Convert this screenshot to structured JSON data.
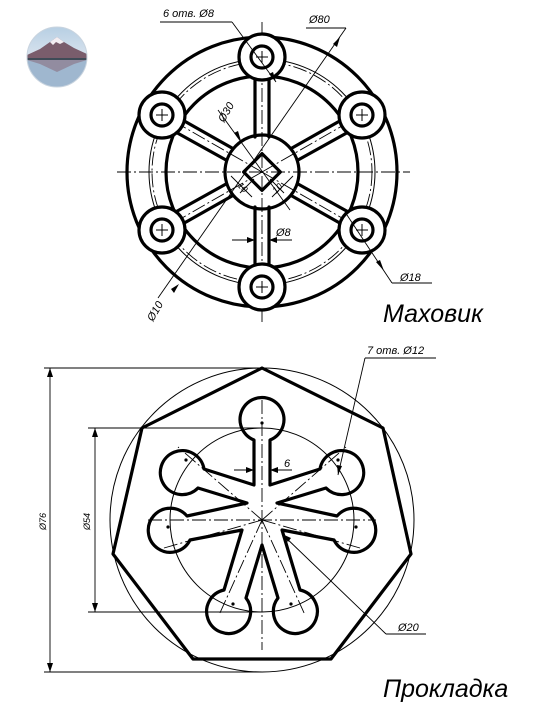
{
  "flywheel": {
    "title": "Маховик",
    "dims": {
      "holes_note": "6 отв. Ø8",
      "outer_diameter": "Ø80",
      "hub_diameter": "Ø30",
      "square_w": "10",
      "square_h": "10",
      "spoke_width": "Ø8",
      "boss_diameter": "Ø18",
      "inner_bore": "Ø10"
    }
  },
  "gasket": {
    "title": "Прокладка",
    "dims": {
      "holes_note": "7 отв. Ø12",
      "outer_diameter": "Ø76",
      "middle_diameter": "Ø54",
      "slot_width": "6",
      "pad_diameter": "Ø20"
    }
  }
}
